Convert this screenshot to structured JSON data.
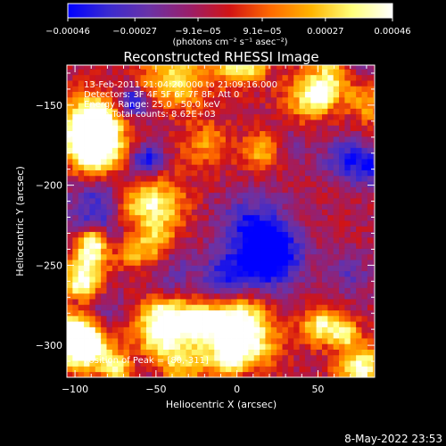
{
  "chart_data": {
    "type": "heatmap",
    "title": "Reconstructed RHESSI Image",
    "xlabel": "Heliocentric X (arcsec)",
    "ylabel": "Heliocentric Y (arcsec)",
    "xlim": [
      -105,
      85
    ],
    "ylim": [
      -320,
      -125
    ],
    "xticks": [
      -100,
      -50,
      0,
      50
    ],
    "xtick_labels": [
      "−100",
      "−50",
      "0",
      "50"
    ],
    "yticks": [
      -150,
      -200,
      -250,
      -300
    ],
    "ytick_labels": [
      "−150",
      "−200",
      "−250",
      "−300"
    ],
    "colorbar": {
      "range": [
        -0.00046,
        0.00046
      ],
      "ticks": [
        -0.00046,
        -0.00027,
        -9.1e-05,
        9.1e-05,
        0.00027,
        0.00046
      ],
      "tick_labels": [
        "−0.00046",
        "−0.00027",
        "−9.1e−05",
        "9.1e−05",
        "0.00027",
        "0.00046"
      ],
      "units_label": "(photons cm⁻² s⁻¹ asec⁻²)",
      "colormap": [
        "#0000ff",
        "#3a2ad0",
        "#6a32a6",
        "#9a1e6a",
        "#d21414",
        "#ff6a00",
        "#ffb400",
        "#ffff7a",
        "#ffffff"
      ]
    },
    "annotations": [
      "13-Feb-2011 21:04:20.000 to 21:09:16.000",
      "Detectors: 3F 4F 5F 6F 7F 8F, Att 0",
      "Energy Range: 25.0 - 50.0 keV",
      "Clean     Total counts: 8.62E+03",
      "Position of Peak = [80,-311]"
    ],
    "peak": {
      "x": 80,
      "y": -311
    },
    "footer": "8-May-2022 23:53"
  }
}
